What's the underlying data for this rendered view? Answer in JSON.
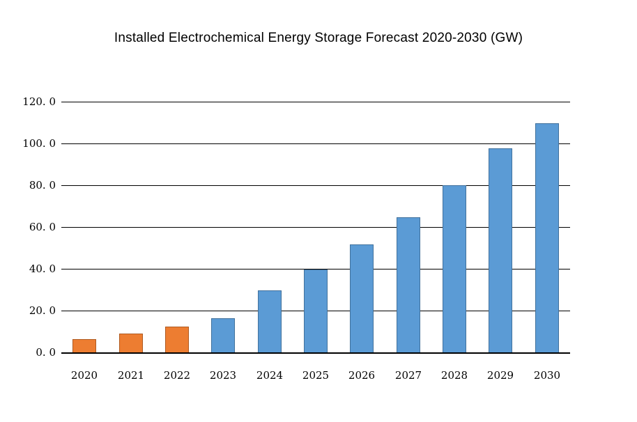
{
  "page": {
    "background_color": "#ffffff"
  },
  "chart_data": {
    "type": "bar",
    "title": "Installed Electrochemical Energy Storage Forecast 2020-2030 (GW)",
    "xlabel": "",
    "ylabel": "",
    "categories": [
      "2020",
      "2021",
      "2022",
      "2023",
      "2024",
      "2025",
      "2026",
      "2027",
      "2028",
      "2029",
      "2030"
    ],
    "values": [
      6.4,
      9.1,
      12.2,
      16.3,
      29.8,
      39.8,
      51.6,
      64.5,
      79.9,
      97.8,
      109.5
    ],
    "units": "GW",
    "ylim": [
      0,
      120
    ],
    "y_tick_values": [
      0,
      20,
      40,
      60,
      80,
      100,
      120
    ],
    "y_tick_labels": [
      "0. 0",
      "20. 0",
      "40. 0",
      "60. 0",
      "80. 0",
      "100. 0",
      "120. 0"
    ],
    "grid": true,
    "legend_position": "none",
    "colors": {
      "historical_fill": "#ed7d31",
      "historical_border": "#ae5a21",
      "forecast_fill": "#5b9bd5",
      "forecast_border": "#41719c",
      "gridline": "#000000",
      "axis_line": "#000000",
      "text": "#000000"
    },
    "historical_bar_count": 3
  }
}
